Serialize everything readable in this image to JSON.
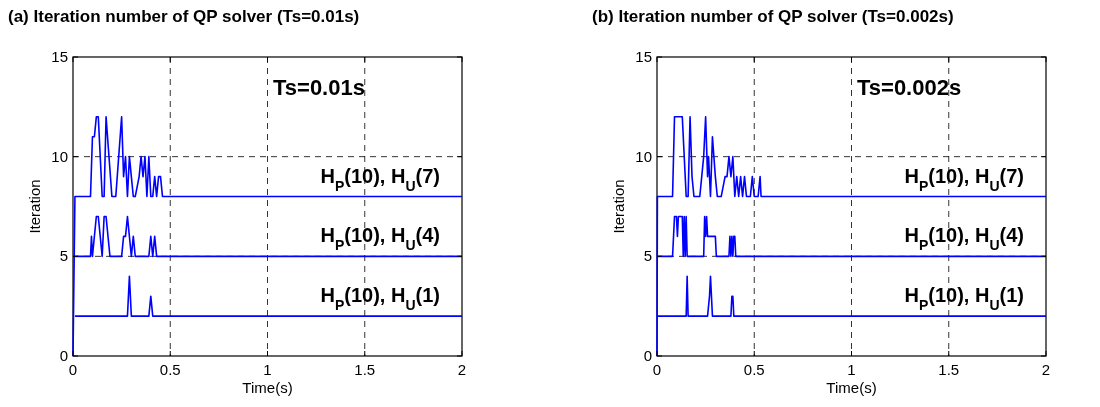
{
  "chart_data": [
    {
      "type": "line",
      "title": "(a) Iteration number of QP solver (Ts=0.01s)",
      "xlabel": "Time(s)",
      "ylabel": "Iteration",
      "annotations": [
        "Ts=0.01s"
      ],
      "xlim": [
        0,
        2
      ],
      "ylim": [
        0,
        15
      ],
      "xticks": [
        0,
        0.5,
        1,
        1.5,
        2
      ],
      "yticks": [
        0,
        5,
        10,
        15
      ],
      "grid": true,
      "line_style": "solid",
      "marker": "none",
      "series": [
        {
          "name": "H$_{P}$(10), H$_{U}$(7)",
          "color": "#0000ff",
          "x": [
            0,
            0.01,
            0.09,
            0.1,
            0.11,
            0.12,
            0.13,
            0.15,
            0.16,
            0.17,
            0.2,
            0.22,
            0.25,
            0.26,
            0.27,
            0.28,
            0.29,
            0.31,
            0.32,
            0.34,
            0.35,
            0.36,
            0.37,
            0.38,
            0.39,
            0.4,
            0.41,
            0.42,
            0.43,
            0.44,
            0.45,
            0.46,
            2
          ],
          "values": [
            0,
            8,
            8,
            11,
            11,
            12,
            12,
            8,
            8,
            12,
            8,
            8,
            12,
            9,
            10,
            8,
            10,
            8,
            8,
            9,
            10,
            9,
            10,
            8,
            10,
            8,
            8,
            9,
            8,
            9,
            9,
            8,
            8
          ]
        },
        {
          "name": "H$_{P}$(10), H$_{U}$(4)",
          "color": "#0000ff",
          "x": [
            0.01,
            0.09,
            0.095,
            0.1,
            0.12,
            0.13,
            0.15,
            0.16,
            0.17,
            0.19,
            0.25,
            0.26,
            0.27,
            0.28,
            0.3,
            0.31,
            0.32,
            0.39,
            0.4,
            0.41,
            0.42,
            0.43,
            2
          ],
          "values": [
            5,
            5,
            6,
            5,
            7,
            7,
            5,
            7,
            7,
            5,
            5,
            6,
            6,
            7,
            5,
            6,
            5,
            5,
            6,
            5,
            6,
            5,
            5
          ]
        },
        {
          "name": "H$_{P}$(10), H$_{U}$(1)",
          "color": "#0000ff",
          "x": [
            0.01,
            0.28,
            0.29,
            0.3,
            0.39,
            0.4,
            0.41,
            2
          ],
          "values": [
            2,
            2,
            4,
            2,
            2,
            3,
            2,
            2
          ]
        }
      ]
    },
    {
      "type": "line",
      "title": "(b) Iteration number of QP solver (Ts=0.002s)",
      "xlabel": "Time(s)",
      "ylabel": "Iteration",
      "annotations": [
        "Ts=0.002s"
      ],
      "xlim": [
        0,
        2
      ],
      "ylim": [
        0,
        15
      ],
      "xticks": [
        0,
        0.5,
        1,
        1.5,
        2
      ],
      "yticks": [
        0,
        5,
        10,
        15
      ],
      "grid": true,
      "line_style": "solid",
      "marker": "none",
      "series": [
        {
          "name": "H$_{P}$(10), H$_{U}$(7)",
          "color": "#0000ff",
          "x": [
            0,
            0.002,
            0.08,
            0.09,
            0.13,
            0.15,
            0.16,
            0.17,
            0.18,
            0.19,
            0.22,
            0.23,
            0.24,
            0.25,
            0.26,
            0.265,
            0.275,
            0.285,
            0.3,
            0.31,
            0.33,
            0.35,
            0.36,
            0.37,
            0.38,
            0.39,
            0.4,
            0.41,
            0.42,
            0.43,
            0.44,
            0.45,
            0.46,
            0.48,
            0.49,
            0.5,
            0.52,
            0.53,
            0.535,
            2
          ],
          "values": [
            0,
            8,
            8,
            12,
            12,
            8,
            8,
            12,
            9,
            8,
            8,
            9,
            10,
            12,
            9,
            10,
            8,
            11,
            9,
            8,
            8,
            9,
            9,
            10,
            9,
            10,
            8,
            9,
            8,
            9,
            8,
            9,
            8,
            8,
            9,
            8,
            8,
            9,
            8,
            8
          ]
        },
        {
          "name": "H$_{P}$(10), H$_{U}$(4)",
          "color": "#0000ff",
          "x": [
            0.002,
            0.08,
            0.09,
            0.1,
            0.105,
            0.11,
            0.13,
            0.135,
            0.14,
            0.145,
            0.15,
            0.155,
            0.24,
            0.245,
            0.25,
            0.255,
            0.26,
            0.3,
            0.305,
            0.37,
            0.375,
            0.38,
            0.385,
            0.39,
            0.395,
            0.4,
            0.405,
            2
          ],
          "values": [
            5,
            5,
            7,
            7,
            6,
            7,
            7,
            5,
            7,
            5,
            7,
            5,
            5,
            7,
            6,
            7,
            6,
            6,
            5,
            5,
            6,
            5,
            6,
            5,
            6,
            6,
            5,
            5
          ]
        },
        {
          "name": "H$_{P}$(10), H$_{U}$(1)",
          "color": "#0000ff",
          "x": [
            0.002,
            0.15,
            0.155,
            0.16,
            0.26,
            0.27,
            0.275,
            0.28,
            0.285,
            0.38,
            0.385,
            0.39,
            0.395,
            2
          ],
          "values": [
            2,
            2,
            4,
            2,
            2,
            3,
            4,
            3,
            2,
            2,
            3,
            3,
            2,
            2
          ]
        }
      ]
    }
  ]
}
